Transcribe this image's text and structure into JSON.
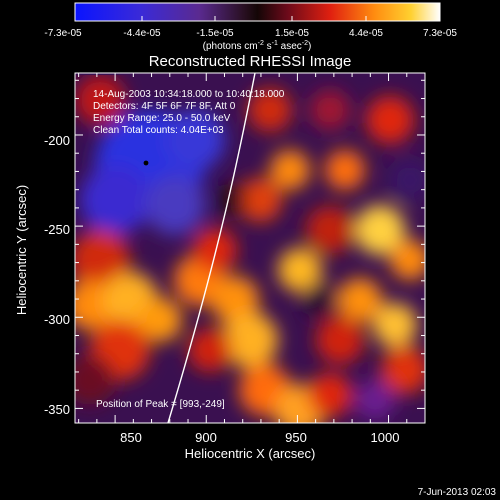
{
  "colorbar": {
    "tick_labels": [
      "-7.3e-05",
      "-4.4e-05",
      "-1.5e-05",
      "1.5e-05",
      "4.4e-05",
      "7.3e-05"
    ],
    "unit_main": "(photons cm",
    "unit_exp1": "-2",
    "unit_mid": " s",
    "unit_exp2": "-1",
    "unit_tail": " asec",
    "unit_exp3": "-2",
    "unit_close": ")"
  },
  "title": "Reconstructed RHESSI Image",
  "info": {
    "line1": "14-Aug-2003 10:34:18.000 to 10:40:18.000",
    "line2": "Detectors: 4F 5F 6F 7F 8F, Att 0",
    "line3": "Energy Range: 25.0 - 50.0 keV",
    "line4": "Clean     Total counts: 4.04E+03"
  },
  "peak_label": "Position of Peak = [993,-249]",
  "axes": {
    "xlabel": "Heliocentric X (arcsec)",
    "ylabel": "Heliocentric Y (arcsec)",
    "x_ticks": [
      "850",
      "900",
      "950",
      "1000"
    ],
    "y_ticks": [
      "-200",
      "-250",
      "-300",
      "-350"
    ]
  },
  "footer": {
    "date": "7-Jun-2013 02:03"
  },
  "colors": {
    "text": "#ffffff",
    "background": "#000000",
    "limb": "#ffffff"
  }
}
